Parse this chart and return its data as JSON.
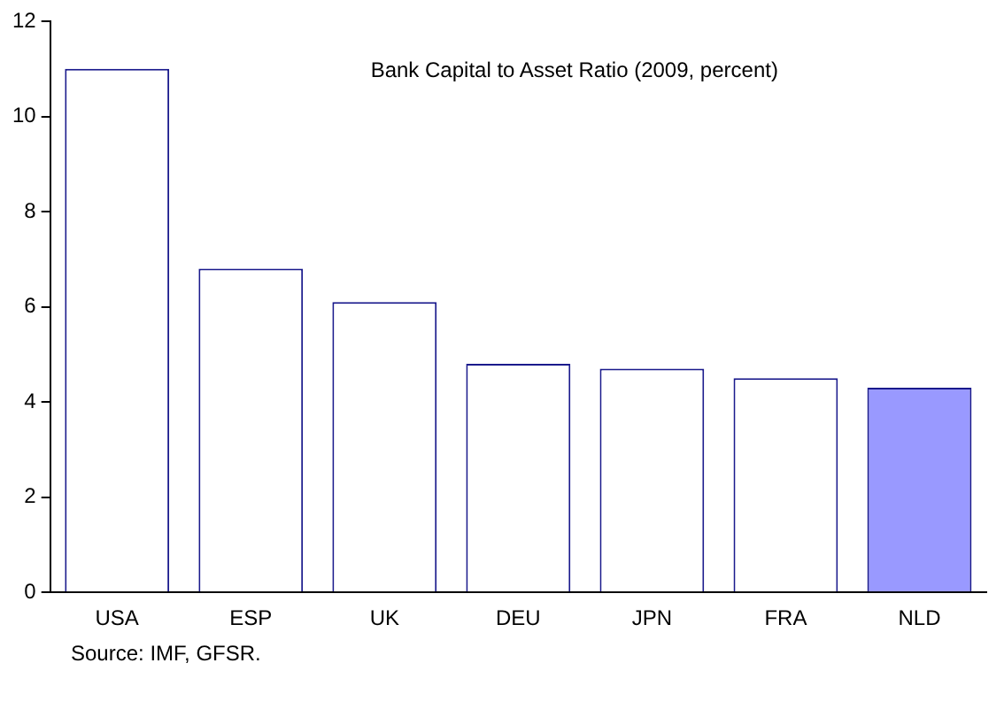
{
  "chart_data": {
    "type": "bar",
    "title": "Bank Capital to Asset Ratio (2009, percent)",
    "categories": [
      "USA",
      "ESP",
      "UK",
      "DEU",
      "JPN",
      "FRA",
      "NLD"
    ],
    "values": [
      11.0,
      6.8,
      6.1,
      4.8,
      4.7,
      4.5,
      4.3
    ],
    "colors": [
      "#ffffff",
      "#ffffff",
      "#ffffff",
      "#ffffff",
      "#ffffff",
      "#ffffff",
      "#9999ff"
    ],
    "ylim": [
      0,
      12
    ],
    "yticks": [
      0,
      2,
      4,
      6,
      8,
      10,
      12
    ],
    "grid": false,
    "legend": false,
    "annotations": [
      "Source: IMF, GFSR."
    ]
  }
}
